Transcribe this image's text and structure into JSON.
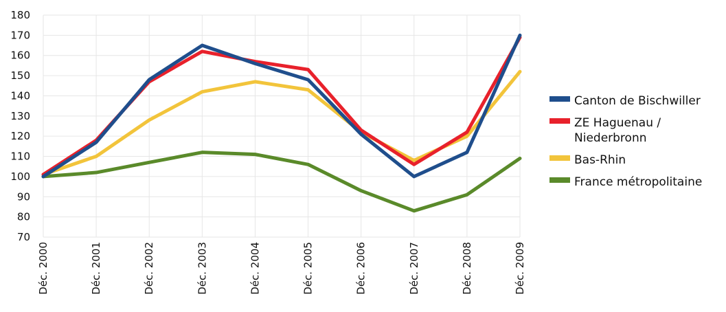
{
  "chart_data": {
    "type": "line",
    "categories": [
      "Déc. 2000",
      "Déc. 2001",
      "Déc. 2002",
      "Déc. 2003",
      "Déc. 2004",
      "Déc. 2005",
      "Déc. 2006",
      "Déc. 2007",
      "Déc. 2008",
      "Déc. 2009"
    ],
    "ylim": [
      70,
      180
    ],
    "yticks": [
      70,
      80,
      90,
      100,
      110,
      120,
      130,
      140,
      150,
      160,
      170,
      180
    ],
    "grid": true,
    "legend_position": "right",
    "series": [
      {
        "name": "Canton de Bischwiller",
        "color": "#1f4e8c",
        "values": [
          100,
          117,
          148,
          165,
          156,
          148,
          121,
          100,
          112,
          170
        ]
      },
      {
        "name": "ZE Haguenau / Niederbronn",
        "color": "#e8212b",
        "values": [
          101,
          118,
          147,
          162,
          157,
          153,
          123,
          106,
          122,
          169
        ]
      },
      {
        "name": "Bas-Rhin",
        "color": "#f2c43b",
        "values": [
          101,
          110,
          128,
          142,
          147,
          143,
          122,
          108,
          120,
          152
        ]
      },
      {
        "name": "France métropolitaine",
        "color": "#5a8a2a",
        "values": [
          100,
          102,
          107,
          112,
          111,
          106,
          93,
          83,
          91,
          109
        ]
      }
    ]
  }
}
